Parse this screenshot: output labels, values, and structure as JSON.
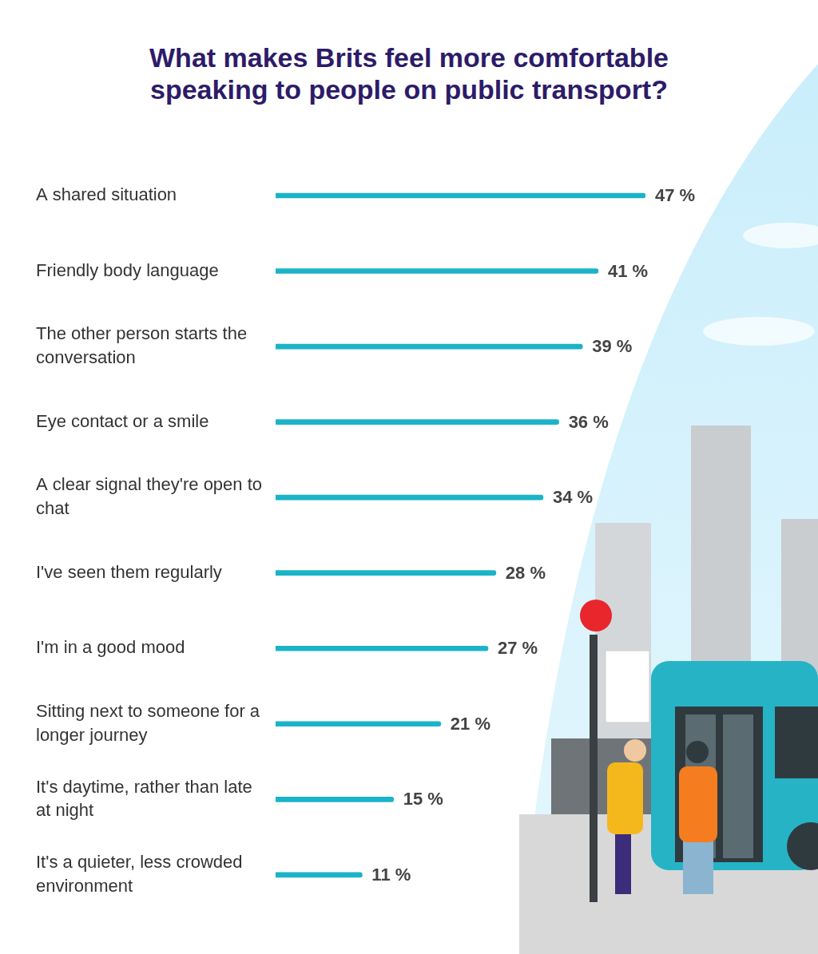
{
  "chart_data": {
    "type": "bar",
    "orientation": "horizontal",
    "title": "What makes Brits feel more comfortable speaking to people on public transport?",
    "categories": [
      "A shared situation",
      "Friendly body language",
      "The other person starts the conversation",
      "Eye contact or a smile",
      "A clear signal they're open to chat",
      "I've seen them regularly",
      "I'm in a good mood",
      "Sitting next to someone for a longer journey",
      "It's daytime, rather than late at night",
      "It's a quieter, less crowded environment"
    ],
    "values": [
      47,
      41,
      39,
      36,
      34,
      28,
      27,
      21,
      15,
      11
    ],
    "value_labels": [
      "47 %",
      "41 %",
      "39 %",
      "36 %",
      "34 %",
      "28 %",
      "27 %",
      "21 %",
      "15 %",
      "11 %"
    ],
    "color": "#1ab3c8",
    "xlim": [
      0,
      47
    ],
    "grid": false,
    "data_labels": true,
    "tick_labels": "y"
  }
}
